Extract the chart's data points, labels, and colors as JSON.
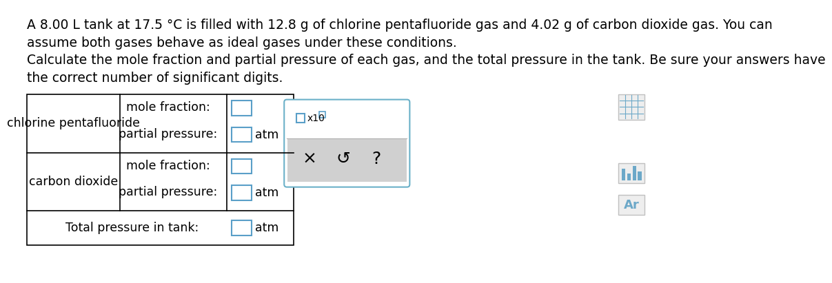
{
  "bg_color": "#ffffff",
  "text_color": "#000000",
  "blue_color": "#4a90c4",
  "table_line_color": "#000000",
  "paragraph1": "A 8.00 L tank at 17.5 °C is filled with 12.8 g of chlorine pentafluoride gas and 4.02 g of carbon dioxide gas. You can\nassume both gases behave as ideal gases under these conditions.",
  "paragraph2": "Calculate the mole fraction and partial pressure of each gas, and the total pressure in the tank. Be sure your answers have\nthe correct number of significant digits.",
  "row1_label": "chlorine pentafluoride",
  "row2_label": "carbon dioxide",
  "mole_fraction_label": "mole fraction:",
  "partial_pressure_label": "partial pressure:",
  "total_pressure_label": "Total pressure in tank:",
  "atm_label": "atm",
  "x10_label": "x10",
  "popup_button_x": "×",
  "popup_button_undo": "↺",
  "popup_button_q": "?",
  "icon_calc_color": "#6ca8c8",
  "icon_bar_color": "#6ca8c8",
  "icon_ar_color": "#6ca8c8",
  "popup_border_color": "#6ab0c8",
  "popup_bg_top": "#ffffff",
  "popup_bg_bottom": "#d0d0d0",
  "input_border_color": "#5a9fc8",
  "font_size_body": 13.5,
  "font_size_table": 12.5,
  "font_size_small": 10
}
